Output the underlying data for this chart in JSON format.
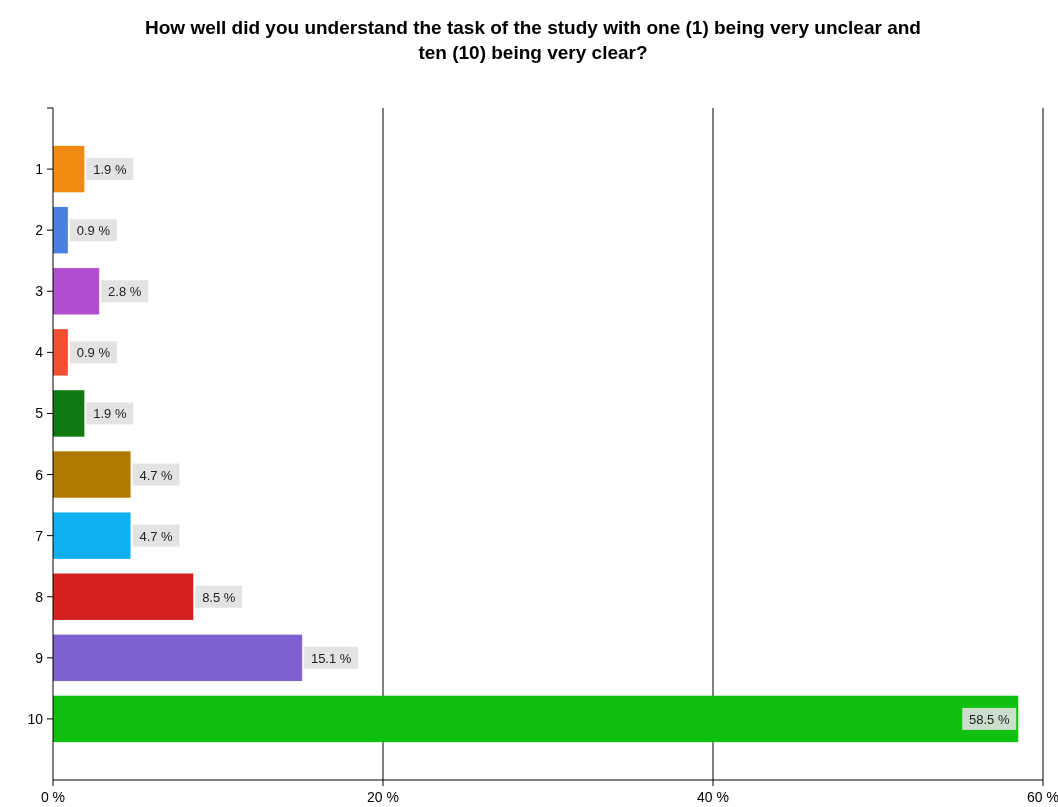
{
  "chart_data": {
    "type": "bar",
    "orientation": "horizontal",
    "title": "How well did you understand the task of the study with one (1)  being very unclear and ten (10) being very clear?",
    "categories": [
      "1",
      "2",
      "3",
      "4",
      "5",
      "6",
      "7",
      "8",
      "9",
      "10"
    ],
    "values": [
      1.9,
      0.9,
      2.8,
      0.9,
      1.9,
      4.7,
      4.7,
      8.5,
      15.1,
      58.5
    ],
    "colors": [
      "#f08a10",
      "#4a7fe0",
      "#b050d0",
      "#f05030",
      "#107a10",
      "#b07a00",
      "#10b0f0",
      "#d82020",
      "#8060d0",
      "#10c010"
    ],
    "value_labels": [
      "1.9 %",
      "0.9 %",
      "2.8 %",
      "0.9 %",
      "1.9 %",
      "4.7 %",
      "4.7 %",
      "8.5 %",
      "15.1 %",
      "58.5 %"
    ],
    "xlim": [
      0,
      60
    ],
    "xticks": [
      {
        "value": 0,
        "label": "0 %"
      },
      {
        "value": 20,
        "label": "20 %"
      },
      {
        "value": 40,
        "label": "40 %"
      },
      {
        "value": 60,
        "label": "60 %"
      }
    ],
    "grid": "x"
  }
}
